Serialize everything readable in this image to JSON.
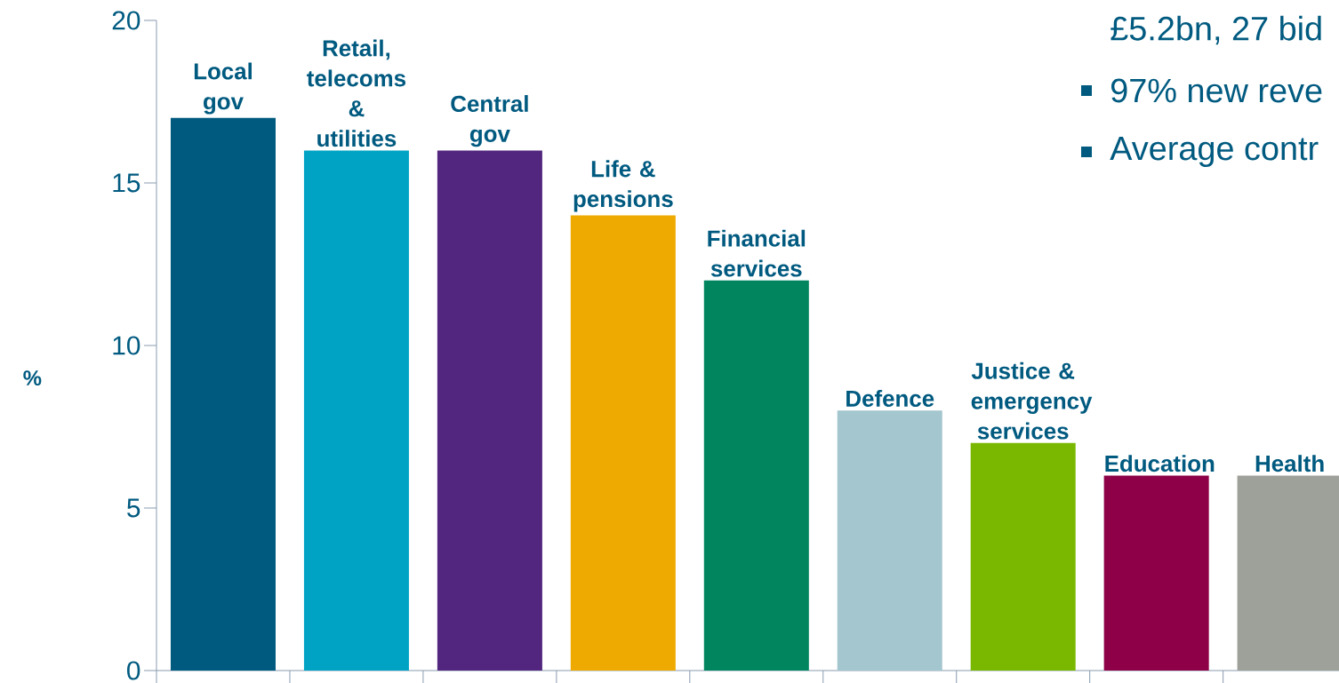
{
  "chart_data": {
    "type": "bar",
    "ylabel": "%",
    "categories": [
      "Local gov",
      "Retail, telecoms & utilities",
      "Central gov",
      "Life & pensions",
      "Financial services",
      "Defence",
      "Justice & emergency services",
      "Education",
      "Health"
    ],
    "values": [
      17,
      16,
      16,
      14,
      12,
      8,
      7,
      6,
      6
    ],
    "colors": [
      "#005a80",
      "#00a3c4",
      "#52267f",
      "#eeaa00",
      "#00855f",
      "#a3c6cf",
      "#7ab800",
      "#8e0047",
      "#9ea09a"
    ],
    "ylim": [
      0,
      20
    ],
    "yticks": [
      0,
      5,
      10,
      15,
      20
    ],
    "grid": false,
    "tick_labels": "y",
    "annotations": [
      "£5.2bn, 27 bid",
      "97% new reve",
      "Average contr"
    ]
  }
}
